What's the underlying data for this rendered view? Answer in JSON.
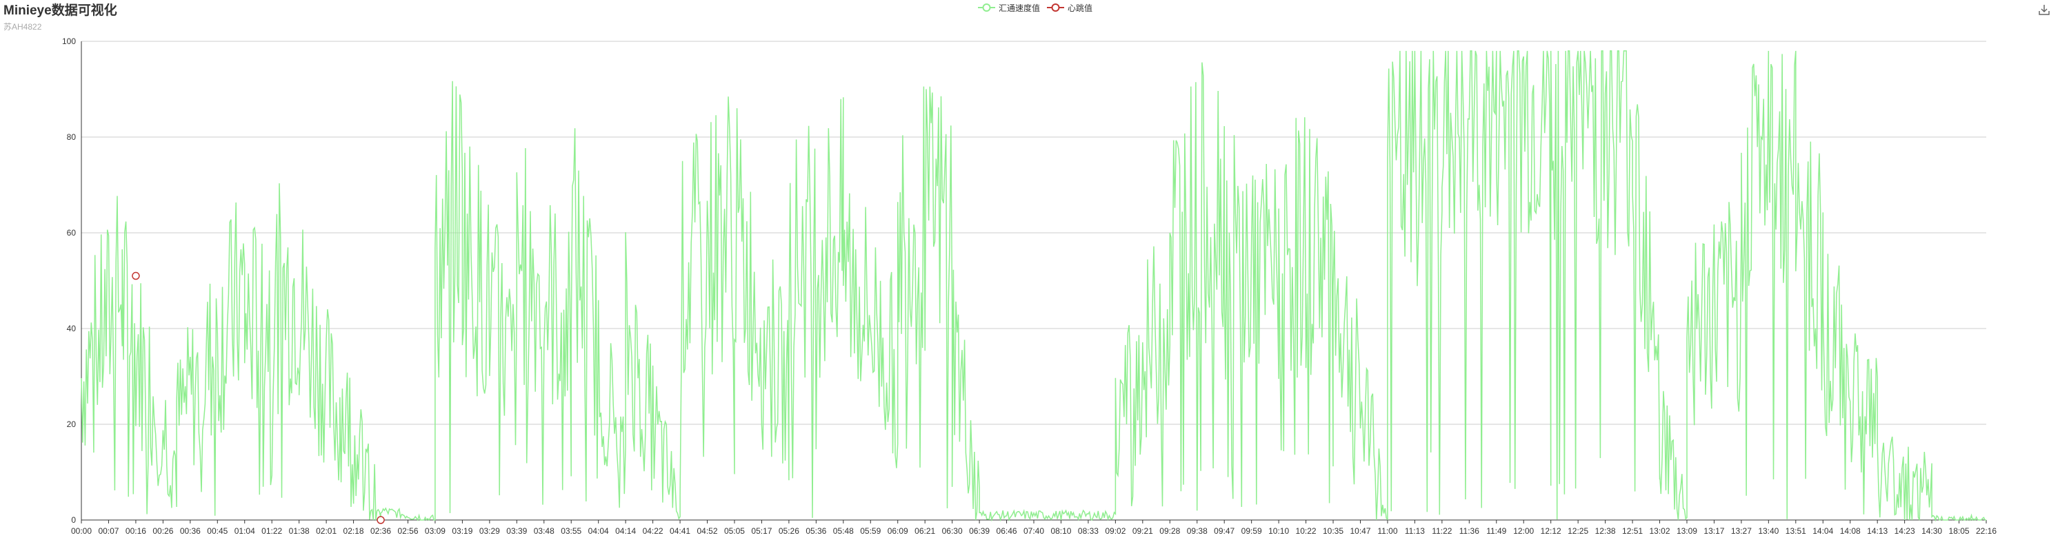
{
  "header": {
    "title": "Minieye数据可视化",
    "subtitle": "苏AH4822"
  },
  "legend": [
    {
      "name": "汇通速度值",
      "color": "#90ee90",
      "icon": "circle-line"
    },
    {
      "name": "心跳值",
      "color": "#c23531",
      "icon": "circle-line"
    }
  ],
  "toolbox": {
    "icon": "download-icon"
  },
  "chart_data": {
    "type": "line",
    "title": "Minieye数据可视化",
    "subtitle": "苏AH4822",
    "xlabel": "",
    "ylabel": "",
    "ylim": [
      0,
      100
    ],
    "y_ticks": [
      "0",
      "20",
      "40",
      "60",
      "80",
      "100"
    ],
    "x_ticks": [
      "00:00",
      "00:07",
      "00:16",
      "00:26",
      "00:36",
      "00:45",
      "01:04",
      "01:22",
      "01:38",
      "02:01",
      "02:18",
      "02:36",
      "02:56",
      "03:09",
      "03:19",
      "03:29",
      "03:39",
      "03:48",
      "03:55",
      "04:04",
      "04:14",
      "04:22",
      "04:41",
      "04:52",
      "05:05",
      "05:17",
      "05:26",
      "05:36",
      "05:48",
      "05:59",
      "06:09",
      "06:21",
      "06:30",
      "06:39",
      "06:46",
      "07:40",
      "08:10",
      "08:33",
      "09:02",
      "09:21",
      "09:28",
      "09:38",
      "09:47",
      "09:59",
      "10:10",
      "10:22",
      "10:35",
      "10:47",
      "11:00",
      "11:13",
      "11:22",
      "11:36",
      "11:49",
      "12:00",
      "12:12",
      "12:25",
      "12:38",
      "12:51",
      "13:02",
      "13:09",
      "13:17",
      "13:27",
      "13:40",
      "13:51",
      "14:04",
      "14:08",
      "14:13",
      "14:23",
      "14:30",
      "18:05",
      "22:16"
    ],
    "grid": true,
    "legend_position": "top-center",
    "series": [
      {
        "name": "汇通速度值",
        "color": "#90ee90",
        "segments": [
          {
            "x": [
              0,
              1.5
            ],
            "values": [
              30,
              48
            ]
          },
          {
            "x": [
              1.5,
              3.5
            ],
            "values": [
              45,
              12
            ]
          },
          {
            "x": [
              3.5,
              6
            ],
            "values": [
              20,
              48
            ]
          },
          {
            "x": [
              6,
              8
            ],
            "values": [
              40,
              50
            ]
          },
          {
            "x": [
              8,
              9.5
            ],
            "values": [
              45,
              20
            ]
          },
          {
            "x": [
              9.5,
              11
            ],
            "values": [
              25,
              0
            ]
          },
          {
            "x": [
              11,
              13
            ],
            "values": [
              2,
              0
            ]
          },
          {
            "x": [
              13,
              14
            ],
            "values": [
              50,
              70
            ]
          },
          {
            "x": [
              14,
              16
            ],
            "values": [
              60,
              30
            ]
          },
          {
            "x": [
              16,
              18
            ],
            "values": [
              55,
              40
            ]
          },
          {
            "x": [
              18,
              20
            ],
            "values": [
              60,
              10
            ]
          },
          {
            "x": [
              20,
              22
            ],
            "values": [
              40,
              0
            ]
          },
          {
            "x": [
              22,
              24
            ],
            "values": [
              50,
              65
            ]
          },
          {
            "x": [
              24,
              26
            ],
            "values": [
              60,
              25
            ]
          },
          {
            "x": [
              26,
              28
            ],
            "values": [
              55,
              60
            ]
          },
          {
            "x": [
              28,
              30
            ],
            "values": [
              55,
              30
            ]
          },
          {
            "x": [
              30,
              32
            ],
            "values": [
              60,
              65
            ]
          },
          {
            "x": [
              32,
              33
            ],
            "values": [
              40,
              5
            ]
          },
          {
            "x": [
              33,
              38
            ],
            "values": [
              1,
              1
            ]
          },
          {
            "x": [
              38,
              40
            ],
            "values": [
              20,
              45
            ]
          },
          {
            "x": [
              40,
              42
            ],
            "values": [
              60,
              70
            ]
          },
          {
            "x": [
              42,
              44
            ],
            "values": [
              55,
              50
            ]
          },
          {
            "x": [
              44,
              46
            ],
            "values": [
              55,
              60
            ]
          },
          {
            "x": [
              46,
              48
            ],
            "values": [
              50,
              0
            ]
          },
          {
            "x": [
              48,
              50
            ],
            "values": [
              70,
              80
            ]
          },
          {
            "x": [
              50,
              52
            ],
            "values": [
              82,
              85
            ]
          },
          {
            "x": [
              52,
              54
            ],
            "values": [
              85,
              86
            ]
          },
          {
            "x": [
              54,
              57
            ],
            "values": [
              88,
              84
            ]
          },
          {
            "x": [
              57,
              58
            ],
            "values": [
              80,
              40
            ]
          },
          {
            "x": [
              58,
              59
            ],
            "values": [
              20,
              0
            ]
          },
          {
            "x": [
              59,
              61
            ],
            "values": [
              40,
              45
            ]
          },
          {
            "x": [
              61,
              62
            ],
            "values": [
              75,
              78
            ]
          },
          {
            "x": [
              62,
              63
            ],
            "values": [
              70,
              78
            ]
          },
          {
            "x": [
              63,
              64
            ],
            "values": [
              72,
              50
            ]
          },
          {
            "x": [
              64,
              66
            ],
            "values": [
              40,
              20
            ]
          },
          {
            "x": [
              66,
              68
            ],
            "values": [
              10,
              5
            ]
          },
          {
            "x": [
              68,
              70
            ],
            "values": [
              0,
              0
            ]
          }
        ]
      },
      {
        "name": "心跳值",
        "color": "#c23531",
        "points": [
          [
            2,
            51
          ],
          [
            11,
            0
          ]
        ]
      }
    ]
  }
}
